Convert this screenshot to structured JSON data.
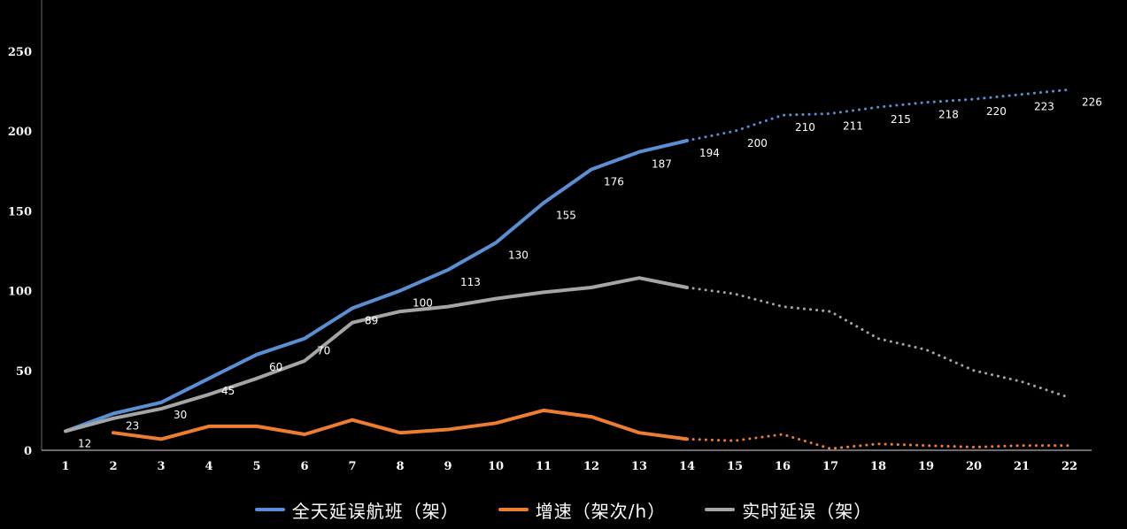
{
  "chart_data": {
    "type": "line",
    "categories": [
      1,
      2,
      3,
      4,
      5,
      6,
      7,
      8,
      9,
      10,
      11,
      12,
      13,
      14,
      15,
      16,
      17,
      18,
      19,
      20,
      21,
      22
    ],
    "ylim": [
      0,
      250
    ],
    "yticks": [
      0,
      50,
      100,
      150,
      200,
      250
    ],
    "grid": false,
    "legend_position": "bottom",
    "actual_through_x": 14,
    "series": [
      {
        "name": "全天延误航班（架）",
        "color": "#5B8FD4",
        "values": [
          12,
          23,
          30,
          45,
          60,
          70,
          89,
          100,
          113,
          130,
          155,
          176,
          187,
          194,
          200,
          210,
          211,
          215,
          218,
          220,
          223,
          226
        ],
        "show_labels": true
      },
      {
        "name": "增速（架次/h）",
        "color": "#ED7D31",
        "values": [
          null,
          11,
          7,
          15,
          15,
          10,
          19,
          11,
          13,
          17,
          25,
          21,
          11,
          7,
          6,
          10,
          1,
          4,
          3,
          2,
          3,
          3
        ],
        "show_labels": false
      },
      {
        "name": "实时延误（架）",
        "color": "#A5A5A5",
        "values": [
          12,
          20,
          26,
          35,
          45,
          56,
          80,
          87,
          90,
          95,
          99,
          102,
          108,
          102,
          98,
          90,
          87,
          70,
          63,
          50,
          43,
          33
        ],
        "show_labels": false
      }
    ]
  }
}
